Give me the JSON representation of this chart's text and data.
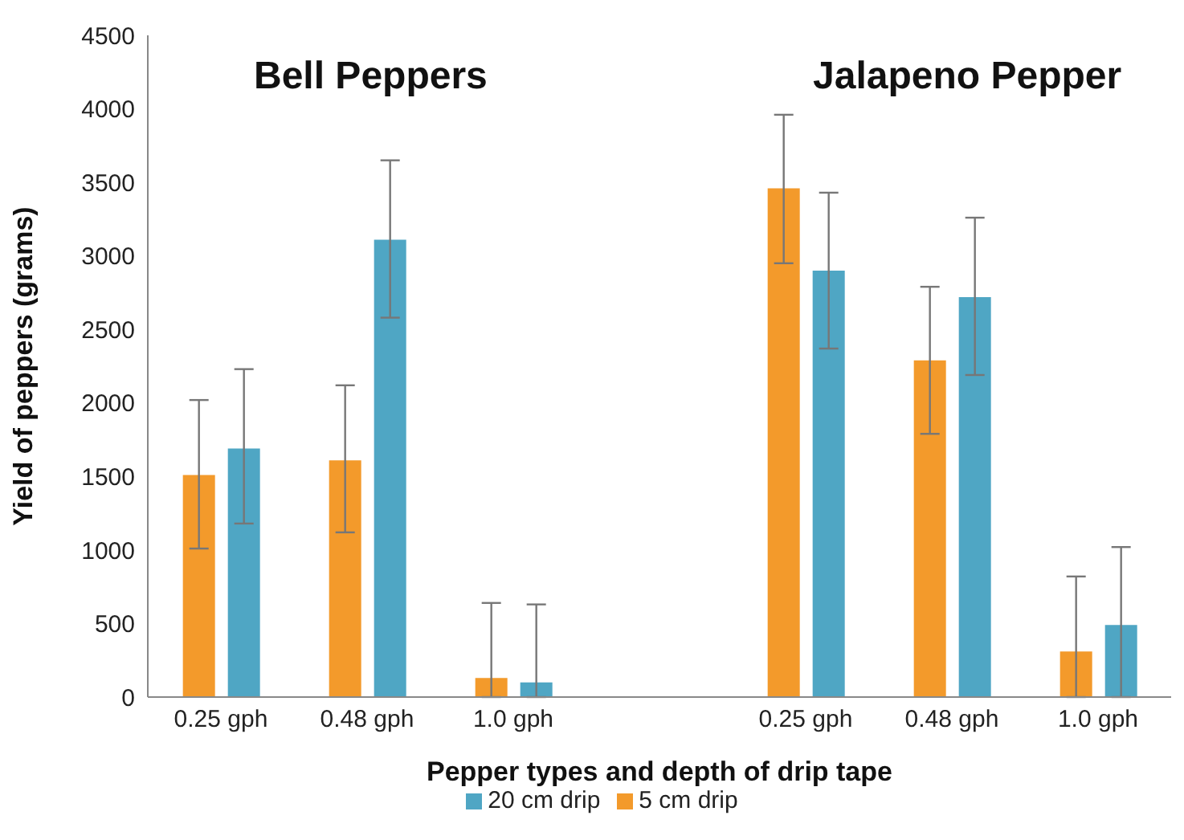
{
  "chart_data": {
    "type": "bar",
    "xlabel": "Pepper types and depth of drip tape",
    "ylabel": "Yield of peppers  (grams)",
    "annotations": [
      "Bell Peppers",
      "Jalapeno Pepper"
    ],
    "categories": [
      "0.25 gph",
      "0.48 gph",
      "1.0 gph",
      null,
      "0.25 gph",
      "0.48 gph",
      "1.0 gph"
    ],
    "series": [
      {
        "name": "5 cm drip",
        "color": "#f39a2b",
        "values": [
          1510,
          1610,
          130,
          null,
          3460,
          2290,
          310
        ],
        "errors": [
          [
            1010,
            2020
          ],
          [
            1120,
            2120
          ],
          [
            0,
            640
          ],
          null,
          [
            2950,
            3960
          ],
          [
            1790,
            2790
          ],
          [
            0,
            820
          ]
        ]
      },
      {
        "name": "20 cm drip",
        "color": "#4fa6c4",
        "values": [
          1690,
          3110,
          100,
          null,
          2900,
          2720,
          490
        ],
        "errors": [
          [
            1180,
            2230
          ],
          [
            2580,
            3650
          ],
          [
            0,
            630
          ],
          null,
          [
            2370,
            3430
          ],
          [
            2190,
            3260
          ],
          [
            0,
            1020
          ]
        ]
      }
    ],
    "ylim": [
      0,
      4500
    ],
    "yticks": [
      0,
      500,
      1000,
      1500,
      2000,
      2500,
      3000,
      3500,
      4000,
      4500
    ],
    "grid": false,
    "legend": "bottom"
  }
}
